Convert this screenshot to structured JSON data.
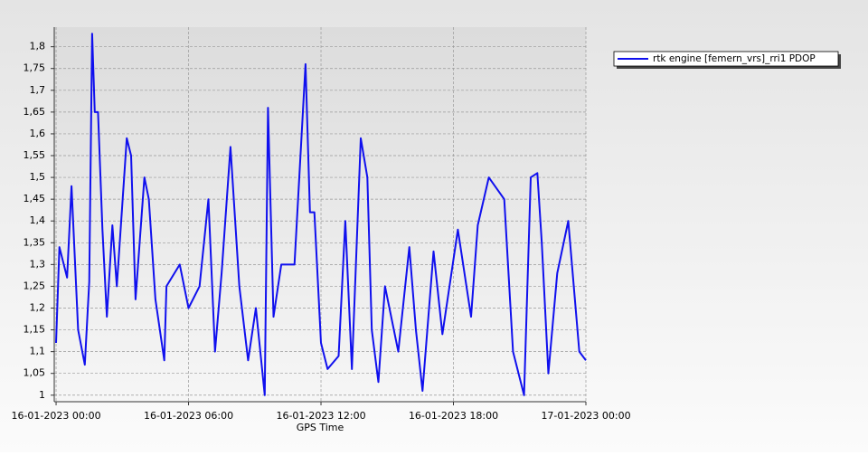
{
  "chart_data": {
    "type": "line",
    "x_label": "GPS Time",
    "x": [
      "2023-01-16 00:00",
      "2023-01-16 00:09",
      "2023-01-16 00:30",
      "2023-01-16 00:42",
      "2023-01-16 01:00",
      "2023-01-16 01:18",
      "2023-01-16 01:30",
      "2023-01-16 01:38",
      "2023-01-16 01:45",
      "2023-01-16 01:54",
      "2023-01-16 02:06",
      "2023-01-16 02:18",
      "2023-01-16 02:33",
      "2023-01-16 02:45",
      "2023-01-16 03:12",
      "2023-01-16 03:24",
      "2023-01-16 03:36",
      "2023-01-16 04:00",
      "2023-01-16 04:12",
      "2023-01-16 04:30",
      "2023-01-16 04:54",
      "2023-01-16 05:00",
      "2023-01-16 05:36",
      "2023-01-16 06:00",
      "2023-01-16 06:30",
      "2023-01-16 06:54",
      "2023-01-16 07:12",
      "2023-01-16 07:30",
      "2023-01-16 07:54",
      "2023-01-16 08:18",
      "2023-01-16 08:42",
      "2023-01-16 09:03",
      "2023-01-16 09:27",
      "2023-01-16 09:36",
      "2023-01-16 09:51",
      "2023-01-16 10:12",
      "2023-01-16 10:48",
      "2023-01-16 11:18",
      "2023-01-16 11:30",
      "2023-01-16 11:42",
      "2023-01-16 12:00",
      "2023-01-16 12:18",
      "2023-01-16 12:48",
      "2023-01-16 13:06",
      "2023-01-16 13:24",
      "2023-01-16 13:48",
      "2023-01-16 14:06",
      "2023-01-16 14:18",
      "2023-01-16 14:36",
      "2023-01-16 14:54",
      "2023-01-16 15:30",
      "2023-01-16 16:00",
      "2023-01-16 16:18",
      "2023-01-16 16:36",
      "2023-01-16 17:06",
      "2023-01-16 17:30",
      "2023-01-16 18:12",
      "2023-01-16 18:48",
      "2023-01-16 19:06",
      "2023-01-16 19:36",
      "2023-01-16 20:18",
      "2023-01-16 20:42",
      "2023-01-16 21:12",
      "2023-01-16 21:30",
      "2023-01-16 21:48",
      "2023-01-16 22:00",
      "2023-01-16 22:18",
      "2023-01-16 22:42",
      "2023-01-16 23:12",
      "2023-01-16 23:42",
      "2023-01-17 00:00"
    ],
    "series": [
      {
        "name": "rtk engine [femern_vrs]_rri1 PDOP",
        "color": "#1010ee",
        "values": [
          1.12,
          1.34,
          1.27,
          1.48,
          1.15,
          1.07,
          1.26,
          1.83,
          1.65,
          1.65,
          1.38,
          1.18,
          1.39,
          1.25,
          1.59,
          1.55,
          1.22,
          1.5,
          1.45,
          1.22,
          1.08,
          1.25,
          1.3,
          1.2,
          1.25,
          1.45,
          1.1,
          1.28,
          1.57,
          1.25,
          1.08,
          1.2,
          1.0,
          1.66,
          1.18,
          1.3,
          1.3,
          1.76,
          1.42,
          1.42,
          1.12,
          1.06,
          1.09,
          1.4,
          1.06,
          1.59,
          1.5,
          1.15,
          1.03,
          1.25,
          1.1,
          1.34,
          1.15,
          1.01,
          1.33,
          1.14,
          1.38,
          1.18,
          1.39,
          1.5,
          1.45,
          1.1,
          1.0,
          1.5,
          1.51,
          1.35,
          1.05,
          1.28,
          1.4,
          1.1,
          1.08
        ]
      }
    ],
    "xlim": [
      "2023-01-15 23:55",
      "2023-01-17 00:00"
    ],
    "xticks": [
      {
        "value": "2023-01-16 00:00",
        "label": "16-01-2023 00:00"
      },
      {
        "value": "2023-01-16 06:00",
        "label": "16-01-2023 06:00"
      },
      {
        "value": "2023-01-16 12:00",
        "label": "16-01-2023 12:00"
      },
      {
        "value": "2023-01-16 18:00",
        "label": "16-01-2023 18:00"
      },
      {
        "value": "2023-01-17 00:00",
        "label": "17-01-2023 00:00"
      }
    ],
    "ylim": [
      0.985,
      1.845
    ],
    "yticks": [
      1,
      {
        "value": 1.05,
        "label": "1,05"
      },
      {
        "value": 1.1,
        "label": "1,1"
      },
      {
        "value": 1.15,
        "label": "1,15"
      },
      {
        "value": 1.2,
        "label": "1,2"
      },
      {
        "value": 1.25,
        "label": "1,25"
      },
      {
        "value": 1.3,
        "label": "1,3"
      },
      {
        "value": 1.35,
        "label": "1,35"
      },
      {
        "value": 1.4,
        "label": "1,4"
      },
      {
        "value": 1.45,
        "label": "1,45"
      },
      {
        "value": 1.5,
        "label": "1,5"
      },
      {
        "value": 1.55,
        "label": "1,55"
      },
      {
        "value": 1.6,
        "label": "1,6"
      },
      {
        "value": 1.65,
        "label": "1,65"
      },
      {
        "value": 1.7,
        "label": "1,7"
      },
      {
        "value": 1.75,
        "label": "1,75"
      },
      {
        "value": 1.8,
        "label": "1,8"
      }
    ],
    "grid": true,
    "legend": "top-right"
  }
}
